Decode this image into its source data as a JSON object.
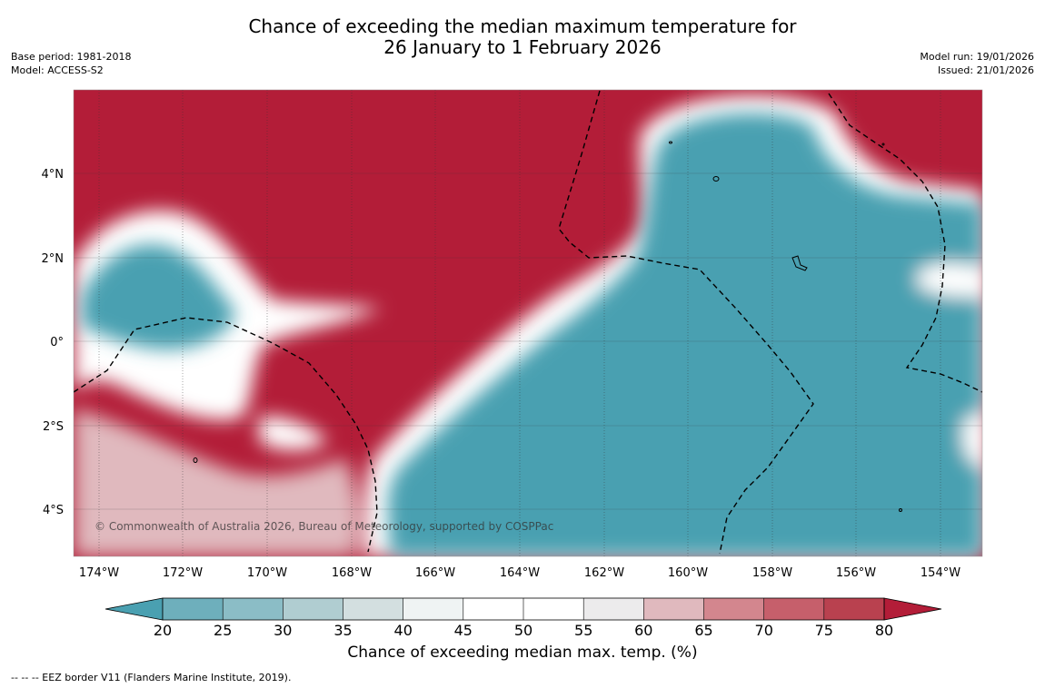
{
  "title": {
    "line1": "Chance of exceeding the median maximum temperature for",
    "line2": "26 January to 1 February 2026"
  },
  "meta_left": {
    "base_period": "Base period: 1981-2018",
    "model": "Model: ACCESS-S2"
  },
  "meta_right": {
    "model_run": "Model run: 19/01/2026",
    "issued": "Issued: 21/01/2026"
  },
  "map": {
    "lon_labels": [
      "174°W",
      "172°W",
      "170°W",
      "168°W",
      "166°W",
      "164°W",
      "162°W",
      "160°W",
      "158°W",
      "156°W",
      "154°W"
    ],
    "lat_labels": [
      "4°N",
      "2°N",
      "0°",
      "2°S",
      "4°S"
    ],
    "copyright": "© Commonwealth of Australia 2026, Bureau of Meteorology, supported by COSPPac"
  },
  "colorbar": {
    "ticks": [
      "20",
      "25",
      "30",
      "35",
      "40",
      "45",
      "50",
      "55",
      "60",
      "65",
      "70",
      "75",
      "80"
    ],
    "colors": [
      "#4aa0b1",
      "#6eafbc",
      "#8bbdc6",
      "#b0cdd1",
      "#d3dfe0",
      "#eff3f3",
      "#ffffff",
      "#ffffff",
      "#ecebec",
      "#e0b9be",
      "#d3868e",
      "#c65f6b",
      "#b9414f",
      "#b31d38"
    ],
    "label": "Chance of exceeding median max. temp. (%)"
  },
  "footnote": "--  --  -- EEZ border V11 (Flanders Marine Institute, 2019)."
}
